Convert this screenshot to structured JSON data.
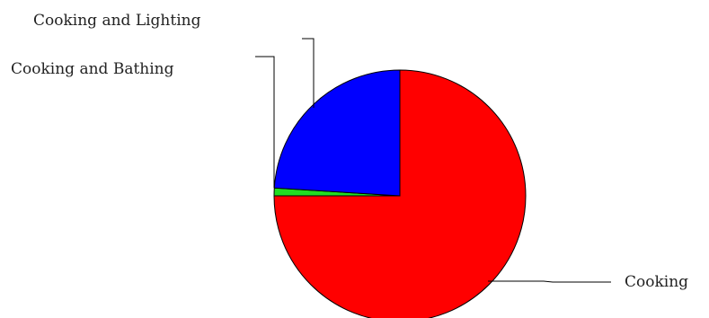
{
  "chart_data": {
    "type": "pie",
    "slices": [
      {
        "label": "Cooking",
        "value": 75,
        "color": "#ff0000"
      },
      {
        "label": "Cooking and Bathing",
        "value": 1,
        "color": "#22dd22"
      },
      {
        "label": "Cooking and Lighting",
        "value": 24,
        "color": "#0000ff"
      }
    ],
    "title": "",
    "legend": "none"
  }
}
